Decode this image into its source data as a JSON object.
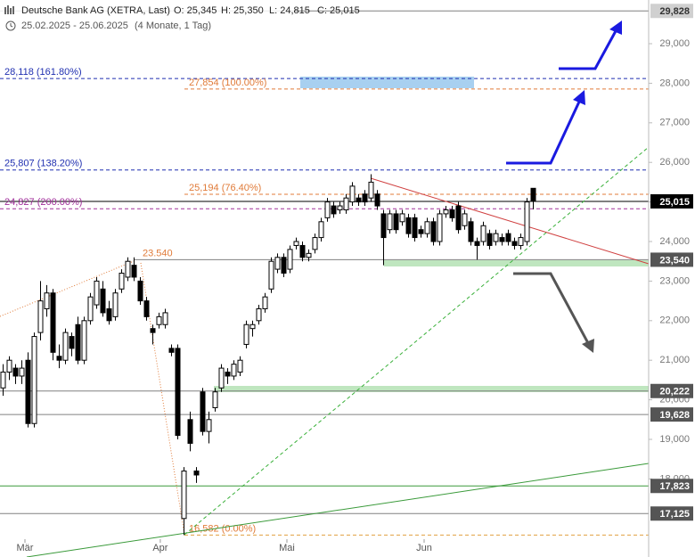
{
  "chart_data": {
    "type": "candlestick",
    "title": "Deutsche Bank AG (XETRA, Last)",
    "ohlc_labels": [
      "O: 25,345",
      "H: 25,350",
      "L: 24,815",
      "C: 25,015"
    ],
    "subtitle": "25.02.2025 - 25.06.2025",
    "period": "(4 Monate, 1 Tag)",
    "up_color": "#ffffff",
    "down_color": "#000000",
    "candles": [
      [
        20300,
        20900,
        20100,
        20700
      ],
      [
        20700,
        21100,
        20500,
        21000
      ],
      [
        20800,
        20900,
        20400,
        20600
      ],
      [
        20600,
        21000,
        20400,
        20800
      ],
      [
        21000,
        21200,
        19300,
        19400
      ],
      [
        19400,
        21700,
        19300,
        21600
      ],
      [
        21700,
        23000,
        21500,
        22500
      ],
      [
        22300,
        22900,
        22100,
        22700
      ],
      [
        22700,
        22800,
        21000,
        21200
      ],
      [
        21100,
        21400,
        20800,
        21000
      ],
      [
        21000,
        21800,
        20900,
        21700
      ],
      [
        21600,
        21700,
        21100,
        21300
      ],
      [
        21900,
        22100,
        20900,
        21000
      ],
      [
        21000,
        22100,
        20900,
        22000
      ],
      [
        22000,
        22700,
        21900,
        22600
      ],
      [
        22400,
        23100,
        22300,
        23000
      ],
      [
        22800,
        23000,
        22100,
        22200
      ],
      [
        22300,
        22500,
        21900,
        22000
      ],
      [
        22100,
        22800,
        22000,
        22700
      ],
      [
        22800,
        23300,
        22700,
        23200
      ],
      [
        23100,
        23600,
        23000,
        23500
      ],
      [
        23400,
        23600,
        23000,
        23100
      ],
      [
        23000,
        23100,
        22400,
        22500
      ],
      [
        22500,
        22600,
        22000,
        22100
      ],
      [
        21800,
        21900,
        21400,
        21700
      ],
      [
        21900,
        22200,
        21800,
        22100
      ],
      [
        21900,
        22300,
        21800,
        22200
      ],
      [
        21300,
        21400,
        21100,
        21200
      ],
      [
        21300,
        21400,
        19000,
        19100
      ],
      [
        17000,
        18300,
        16582,
        18200
      ],
      [
        19500,
        19700,
        18700,
        18900
      ],
      [
        18200,
        18300,
        17900,
        18100
      ],
      [
        20200,
        20300,
        19100,
        19200
      ],
      [
        19200,
        19700,
        18900,
        19500
      ],
      [
        19800,
        20300,
        19700,
        20200
      ],
      [
        20300,
        20900,
        20200,
        20800
      ],
      [
        20700,
        20800,
        20400,
        20600
      ],
      [
        20600,
        21000,
        20500,
        20900
      ],
      [
        20700,
        21100,
        20600,
        21000
      ],
      [
        21400,
        22000,
        21300,
        21900
      ],
      [
        21800,
        22000,
        21600,
        21900
      ],
      [
        22000,
        22400,
        21900,
        22300
      ],
      [
        22300,
        22700,
        22200,
        22600
      ],
      [
        22800,
        23600,
        22700,
        23500
      ],
      [
        23300,
        23700,
        23200,
        23600
      ],
      [
        23600,
        23700,
        23100,
        23200
      ],
      [
        23300,
        23900,
        23200,
        23800
      ],
      [
        23900,
        24100,
        23800,
        24000
      ],
      [
        23900,
        24000,
        23500,
        23600
      ],
      [
        23600,
        23800,
        23500,
        23700
      ],
      [
        23800,
        24200,
        23700,
        24100
      ],
      [
        24100,
        24600,
        24000,
        24500
      ],
      [
        24600,
        25100,
        24500,
        25000
      ],
      [
        24900,
        25000,
        24600,
        24700
      ],
      [
        24800,
        25000,
        24700,
        24900
      ],
      [
        24800,
        25200,
        24700,
        25100
      ],
      [
        25000,
        25500,
        24900,
        25400
      ],
      [
        25100,
        25200,
        24900,
        25000
      ],
      [
        25200,
        25300,
        24900,
        25000
      ],
      [
        25100,
        25700,
        25000,
        25500
      ],
      [
        25200,
        25300,
        24800,
        24900
      ],
      [
        24700,
        24800,
        23400,
        24100
      ],
      [
        24300,
        24800,
        24200,
        24700
      ],
      [
        24700,
        24800,
        24200,
        24300
      ],
      [
        24500,
        24800,
        24400,
        24700
      ],
      [
        24600,
        24700,
        24100,
        24200
      ],
      [
        24600,
        24700,
        24000,
        24100
      ],
      [
        24300,
        24400,
        24100,
        24200
      ],
      [
        24200,
        24600,
        24100,
        24500
      ],
      [
        24500,
        24600,
        23900,
        24000
      ],
      [
        24000,
        24800,
        23900,
        24700
      ],
      [
        24700,
        24900,
        24600,
        24800
      ],
      [
        24800,
        24900,
        24500,
        24600
      ],
      [
        24900,
        25000,
        24200,
        24300
      ],
      [
        24400,
        24800,
        24300,
        24700
      ],
      [
        24500,
        24600,
        23900,
        24000
      ],
      [
        24000,
        24100,
        23540,
        23900
      ],
      [
        24000,
        24500,
        23900,
        24400
      ],
      [
        24200,
        24300,
        23800,
        23900
      ],
      [
        24000,
        24300,
        23900,
        24200
      ],
      [
        24100,
        24200,
        23900,
        24000
      ],
      [
        24200,
        24300,
        23900,
        24000
      ],
      [
        24000,
        24100,
        23800,
        23900
      ],
      [
        23900,
        24200,
        23800,
        24100
      ],
      [
        24000,
        25100,
        23900,
        25000
      ],
      [
        25345,
        25350,
        24815,
        25015
      ]
    ],
    "xlim": [
      -0.5,
      103.5
    ],
    "xticks": [
      {
        "value": 3.5,
        "label": "Mär"
      },
      {
        "value": 25.2,
        "label": "Apr"
      },
      {
        "value": 45.5,
        "label": "Mai"
      },
      {
        "value": 67.5,
        "label": "Jun"
      }
    ],
    "ylim": [
      16027,
      30104
    ],
    "yticks": [
      {
        "value": 29000,
        "label": "29,000"
      },
      {
        "value": 28000,
        "label": "28,000"
      },
      {
        "value": 27000,
        "label": "27,000"
      },
      {
        "value": 26000,
        "label": "26,000"
      },
      {
        "value": 25000,
        "label": "25,000"
      },
      {
        "value": 24000,
        "label": "24,000"
      },
      {
        "value": 23000,
        "label": "23,000"
      },
      {
        "value": 22000,
        "label": "22,000"
      },
      {
        "value": 21000,
        "label": "21,000"
      },
      {
        "value": 20000,
        "label": "20,000"
      },
      {
        "value": 19000,
        "label": "19,000"
      },
      {
        "value": 18000,
        "label": "18,000"
      }
    ],
    "hlines": [
      {
        "value": 29828,
        "color": "#808080",
        "dash": false,
        "axis_label": "29,828",
        "box_color": "#d0d0d0"
      },
      {
        "value": 28118,
        "color": "#1f2fb0",
        "dash": true,
        "label": "28,118 (161.80%)"
      },
      {
        "value": 27854,
        "color": "#e07b39",
        "dash": true,
        "label": "27,854 (100.00%)"
      },
      {
        "value": 25807,
        "color": "#1f2fb0",
        "dash": true,
        "label": "25,807 (138.20%)"
      },
      {
        "value": 25194,
        "color": "#e07b39",
        "dash": true,
        "label": "25,194 (76.40%)"
      },
      {
        "value": 25015,
        "color": "#000000",
        "dash": false,
        "axis_label": "25,015",
        "box_color": "#000000"
      },
      {
        "value": 24827,
        "color": "#a0309a",
        "dash": true,
        "label": "24,827 (200.00%)"
      },
      {
        "value": 23540,
        "color": "#808080",
        "dash": false,
        "label": "23.540",
        "label_color": "#e07b39",
        "axis_label": "23,540",
        "box_color": "#555555"
      },
      {
        "value": 20222,
        "color": "#808080",
        "dash": false,
        "axis_label": "20,222",
        "box_color": "#555555"
      },
      {
        "value": 19628,
        "color": "#808080",
        "dash": false,
        "axis_label": "19,628",
        "box_color": "#555555"
      },
      {
        "value": 17823,
        "color": "#3a9a3a",
        "dash": false,
        "axis_label": "17,823",
        "box_color": "#555555"
      },
      {
        "value": 17125,
        "color": "#808080",
        "dash": false,
        "axis_label": "17,125",
        "box_color": "#555555"
      },
      {
        "value": 16582,
        "color": "#e0a040",
        "dash": true,
        "label": "16,582 (0.00%)",
        "label_color": "#e07b39"
      }
    ]
  }
}
